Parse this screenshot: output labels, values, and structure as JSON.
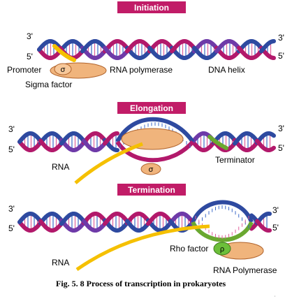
{
  "colors": {
    "magenta": "#b2196b",
    "blue": "#2e4aa0",
    "purple": "#6e3aa8",
    "green": "#6aa830",
    "yellow": "#f5c000",
    "orange": "#f0b47c",
    "orange_dark": "#c85a22",
    "rung_blue": "#3c6ac8",
    "rung_pink": "#e0609a",
    "header_bg": "#c11c67",
    "header_text": "#ffffff",
    "green_factor": "#6cbf3a"
  },
  "panels": {
    "initiation": {
      "header": "Initiation",
      "strand_3_left": "3'",
      "strand_5_left": "5'",
      "strand_3_right": "3'",
      "strand_5_right": "5'",
      "promoter_label": "Promoter",
      "sigma_letter": "σ",
      "rna_polymerase_label": "RNA polymerase",
      "dna_helix_label": "DNA helix",
      "sigma_factor_label": "Sigma factor"
    },
    "elongation": {
      "header": "Elongation",
      "strand_3_left": "3'",
      "strand_5_left": "5'",
      "strand_3_right": "3'",
      "strand_5_right": "5'",
      "rna_label": "RNA",
      "terminator_label": "Terminator",
      "sigma_letter": "σ"
    },
    "termination": {
      "header": "Termination",
      "strand_3_left": "3'",
      "strand_5_left": "5'",
      "strand_3_right": "3'",
      "strand_5_right": "5'",
      "rna_label": "RNA",
      "rho_factor_label": "Rho factor",
      "rho_letter": "ρ",
      "rna_polymerase_label": "RNA Polymerase"
    }
  },
  "caption": "Fig. 5. 8 Process of transcription in prokaryotes"
}
